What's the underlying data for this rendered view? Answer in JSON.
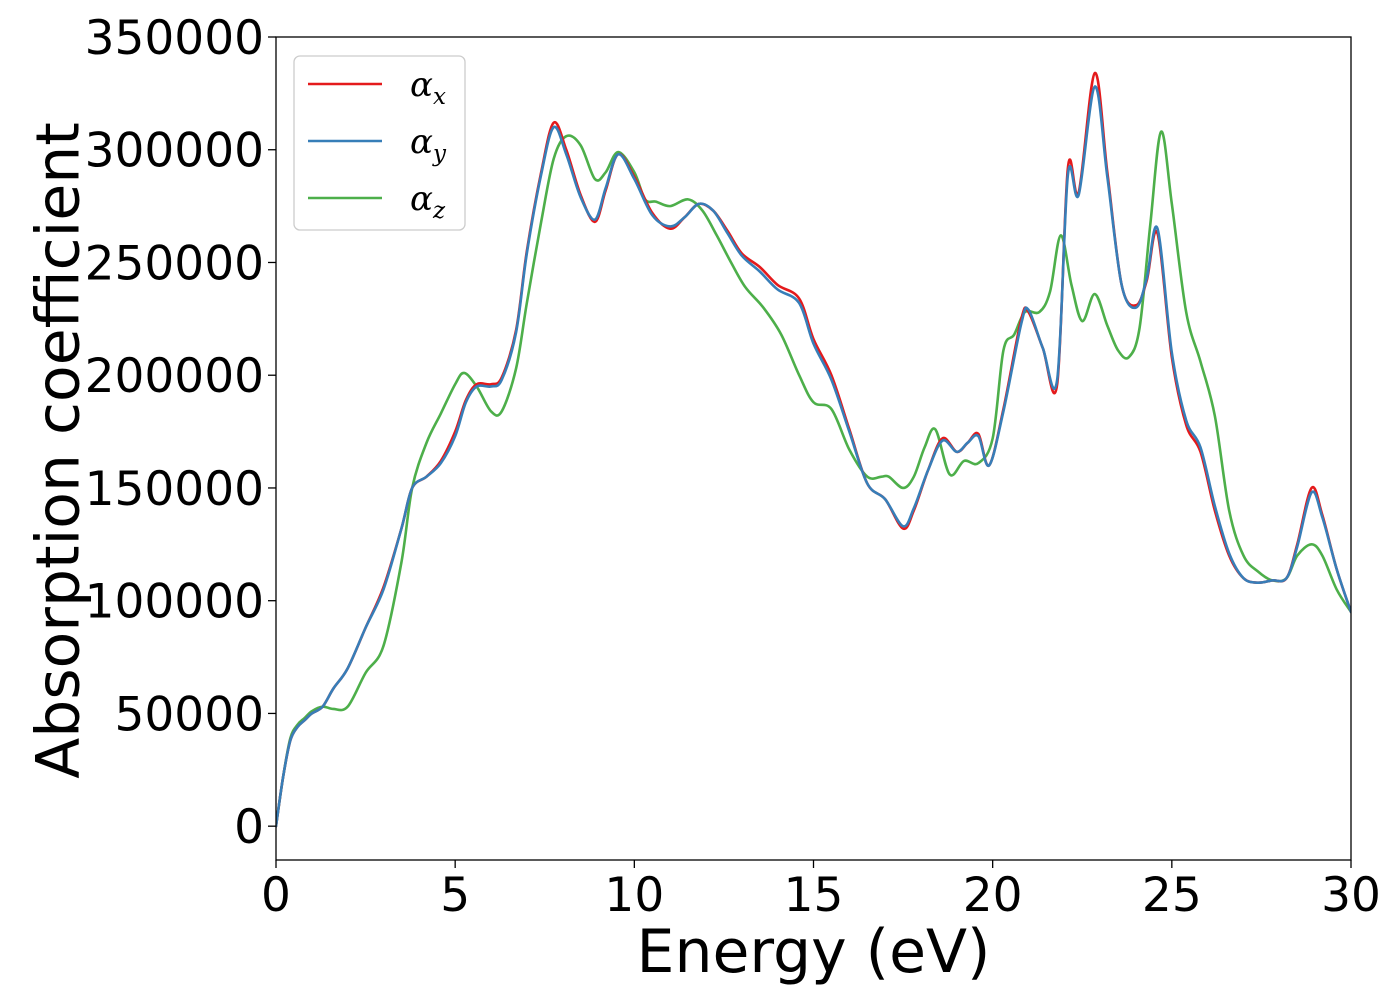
{
  "chart_data": {
    "type": "line",
    "title": "",
    "xlabel": "Energy (eV)",
    "ylabel": "Absorption coefficient",
    "xlim": [
      0,
      30
    ],
    "ylim": [
      -15000,
      350000
    ],
    "xticks": [
      "0",
      "5",
      "10",
      "15",
      "20",
      "25",
      "30"
    ],
    "yticks": [
      "0",
      "50000",
      "100000",
      "150000",
      "200000",
      "250000",
      "300000",
      "350000"
    ],
    "grid": false,
    "legend_position": "top-left",
    "series": [
      {
        "name": "α_x",
        "label_main": "α",
        "label_sub": "x",
        "color": "#e41a1c",
        "x": [
          0,
          0.2,
          0.4,
          0.6,
          0.8,
          1.0,
          1.3,
          1.6,
          2.0,
          2.5,
          3.0,
          3.5,
          3.8,
          4.2,
          4.6,
          5.0,
          5.3,
          5.6,
          6.0,
          6.3,
          6.7,
          7.0,
          7.4,
          7.75,
          8.1,
          8.5,
          8.9,
          9.2,
          9.55,
          10.0,
          10.5,
          11.0,
          11.4,
          11.8,
          12.2,
          12.6,
          13.0,
          13.5,
          14.0,
          14.6,
          15.0,
          15.5,
          16.0,
          16.5,
          17.0,
          17.5,
          17.8,
          18.2,
          18.6,
          19.0,
          19.3,
          19.6,
          19.9,
          20.3,
          20.8,
          21.0,
          21.4,
          21.8,
          22.1,
          22.4,
          22.85,
          23.2,
          23.6,
          24.0,
          24.3,
          24.6,
          25.0,
          25.4,
          25.8,
          26.2,
          26.6,
          27.0,
          27.4,
          27.8,
          28.2,
          28.5,
          28.9,
          29.2,
          29.6,
          30.0
        ],
        "values": [
          0,
          22000,
          38000,
          44000,
          47000,
          50000,
          53000,
          61000,
          70000,
          88000,
          106000,
          132000,
          150000,
          155000,
          162000,
          175000,
          189000,
          196000,
          196000,
          199000,
          220000,
          255000,
          290000,
          312000,
          300000,
          280000,
          268000,
          282000,
          298000,
          288000,
          272000,
          265000,
          270000,
          276000,
          273000,
          264000,
          254000,
          248000,
          240000,
          234000,
          216000,
          200000,
          176000,
          152000,
          145000,
          132000,
          140000,
          158000,
          172000,
          166000,
          170000,
          174000,
          160000,
          185000,
          225000,
          228000,
          212000,
          196000,
          292000,
          281000,
          334000,
          290000,
          240000,
          231000,
          242000,
          263000,
          208000,
          178000,
          166000,
          140000,
          120000,
          110000,
          108000,
          109000,
          110000,
          125000,
          150000,
          138000,
          114000,
          95000
        ]
      },
      {
        "name": "α_y",
        "label_main": "α",
        "label_sub": "y",
        "color": "#377eb8",
        "x": [
          0,
          0.2,
          0.4,
          0.6,
          0.8,
          1.0,
          1.3,
          1.6,
          2.0,
          2.5,
          3.0,
          3.5,
          3.8,
          4.2,
          4.6,
          5.0,
          5.3,
          5.6,
          6.0,
          6.3,
          6.7,
          7.0,
          7.4,
          7.75,
          8.1,
          8.5,
          8.9,
          9.2,
          9.55,
          10.0,
          10.5,
          11.0,
          11.4,
          11.8,
          12.2,
          12.6,
          13.0,
          13.5,
          14.0,
          14.6,
          15.0,
          15.5,
          16.0,
          16.5,
          17.0,
          17.5,
          17.8,
          18.2,
          18.6,
          19.0,
          19.3,
          19.6,
          19.9,
          20.3,
          20.8,
          21.0,
          21.4,
          21.8,
          22.1,
          22.4,
          22.85,
          23.2,
          23.6,
          24.0,
          24.3,
          24.6,
          25.0,
          25.4,
          25.8,
          26.2,
          26.6,
          27.0,
          27.4,
          27.8,
          28.2,
          28.5,
          28.9,
          29.2,
          29.6,
          30.0
        ],
        "values": [
          0,
          22000,
          38000,
          44000,
          47000,
          50000,
          53000,
          61000,
          70000,
          88000,
          105000,
          132000,
          150000,
          155000,
          161000,
          173000,
          188000,
          195000,
          195000,
          198000,
          219000,
          254000,
          289000,
          310000,
          298000,
          279000,
          269000,
          283000,
          298000,
          287000,
          271000,
          266000,
          270000,
          276000,
          273000,
          263000,
          253000,
          246000,
          238000,
          232000,
          214000,
          198000,
          175000,
          152000,
          145000,
          133000,
          141000,
          158000,
          171000,
          166000,
          170000,
          173000,
          160000,
          184000,
          223000,
          229000,
          212000,
          198000,
          289000,
          280000,
          328000,
          288000,
          240000,
          230000,
          243000,
          265000,
          210000,
          180000,
          168000,
          142000,
          121000,
          110000,
          108000,
          109000,
          110000,
          124000,
          148000,
          137000,
          114000,
          95000
        ]
      },
      {
        "name": "α_z",
        "label_main": "α",
        "label_sub": "z",
        "color": "#4daf4a",
        "x": [
          0,
          0.2,
          0.4,
          0.6,
          0.8,
          1.0,
          1.3,
          1.6,
          2.0,
          2.5,
          3.0,
          3.5,
          3.8,
          4.2,
          4.6,
          5.0,
          5.25,
          5.6,
          6.0,
          6.3,
          6.7,
          7.0,
          7.4,
          7.75,
          8.1,
          8.5,
          8.9,
          9.2,
          9.55,
          10.0,
          10.3,
          10.6,
          11.0,
          11.5,
          11.9,
          12.3,
          12.7,
          13.1,
          13.6,
          14.1,
          14.6,
          15.0,
          15.5,
          16.0,
          16.5,
          16.9,
          17.1,
          17.5,
          17.8,
          18.1,
          18.4,
          18.8,
          19.2,
          19.6,
          20.0,
          20.3,
          20.6,
          20.9,
          21.3,
          21.6,
          21.9,
          22.2,
          22.5,
          22.85,
          23.2,
          23.5,
          23.8,
          24.1,
          24.4,
          24.7,
          25.0,
          25.4,
          25.8,
          26.2,
          26.6,
          27.0,
          27.4,
          27.8,
          28.2,
          28.5,
          28.9,
          29.2,
          29.6,
          30.0
        ],
        "values": [
          0,
          22000,
          39000,
          45000,
          48000,
          51000,
          53000,
          52000,
          53000,
          68000,
          80000,
          117000,
          150000,
          170000,
          183000,
          196000,
          201000,
          195000,
          184000,
          184000,
          203000,
          232000,
          268000,
          296000,
          306000,
          302000,
          287000,
          290000,
          299000,
          290000,
          278000,
          277000,
          275000,
          278000,
          273000,
          262000,
          250000,
          239000,
          230000,
          218000,
          200000,
          188000,
          185000,
          167000,
          155000,
          155000,
          155000,
          150000,
          155000,
          168000,
          176000,
          156000,
          162000,
          161000,
          172000,
          211000,
          218000,
          228000,
          228000,
          237000,
          262000,
          240000,
          224000,
          236000,
          222000,
          211000,
          208000,
          221000,
          267000,
          308000,
          276000,
          228000,
          206000,
          182000,
          140000,
          120000,
          113000,
          109000,
          110000,
          120000,
          125000,
          120000,
          105000,
          95000
        ]
      }
    ]
  }
}
